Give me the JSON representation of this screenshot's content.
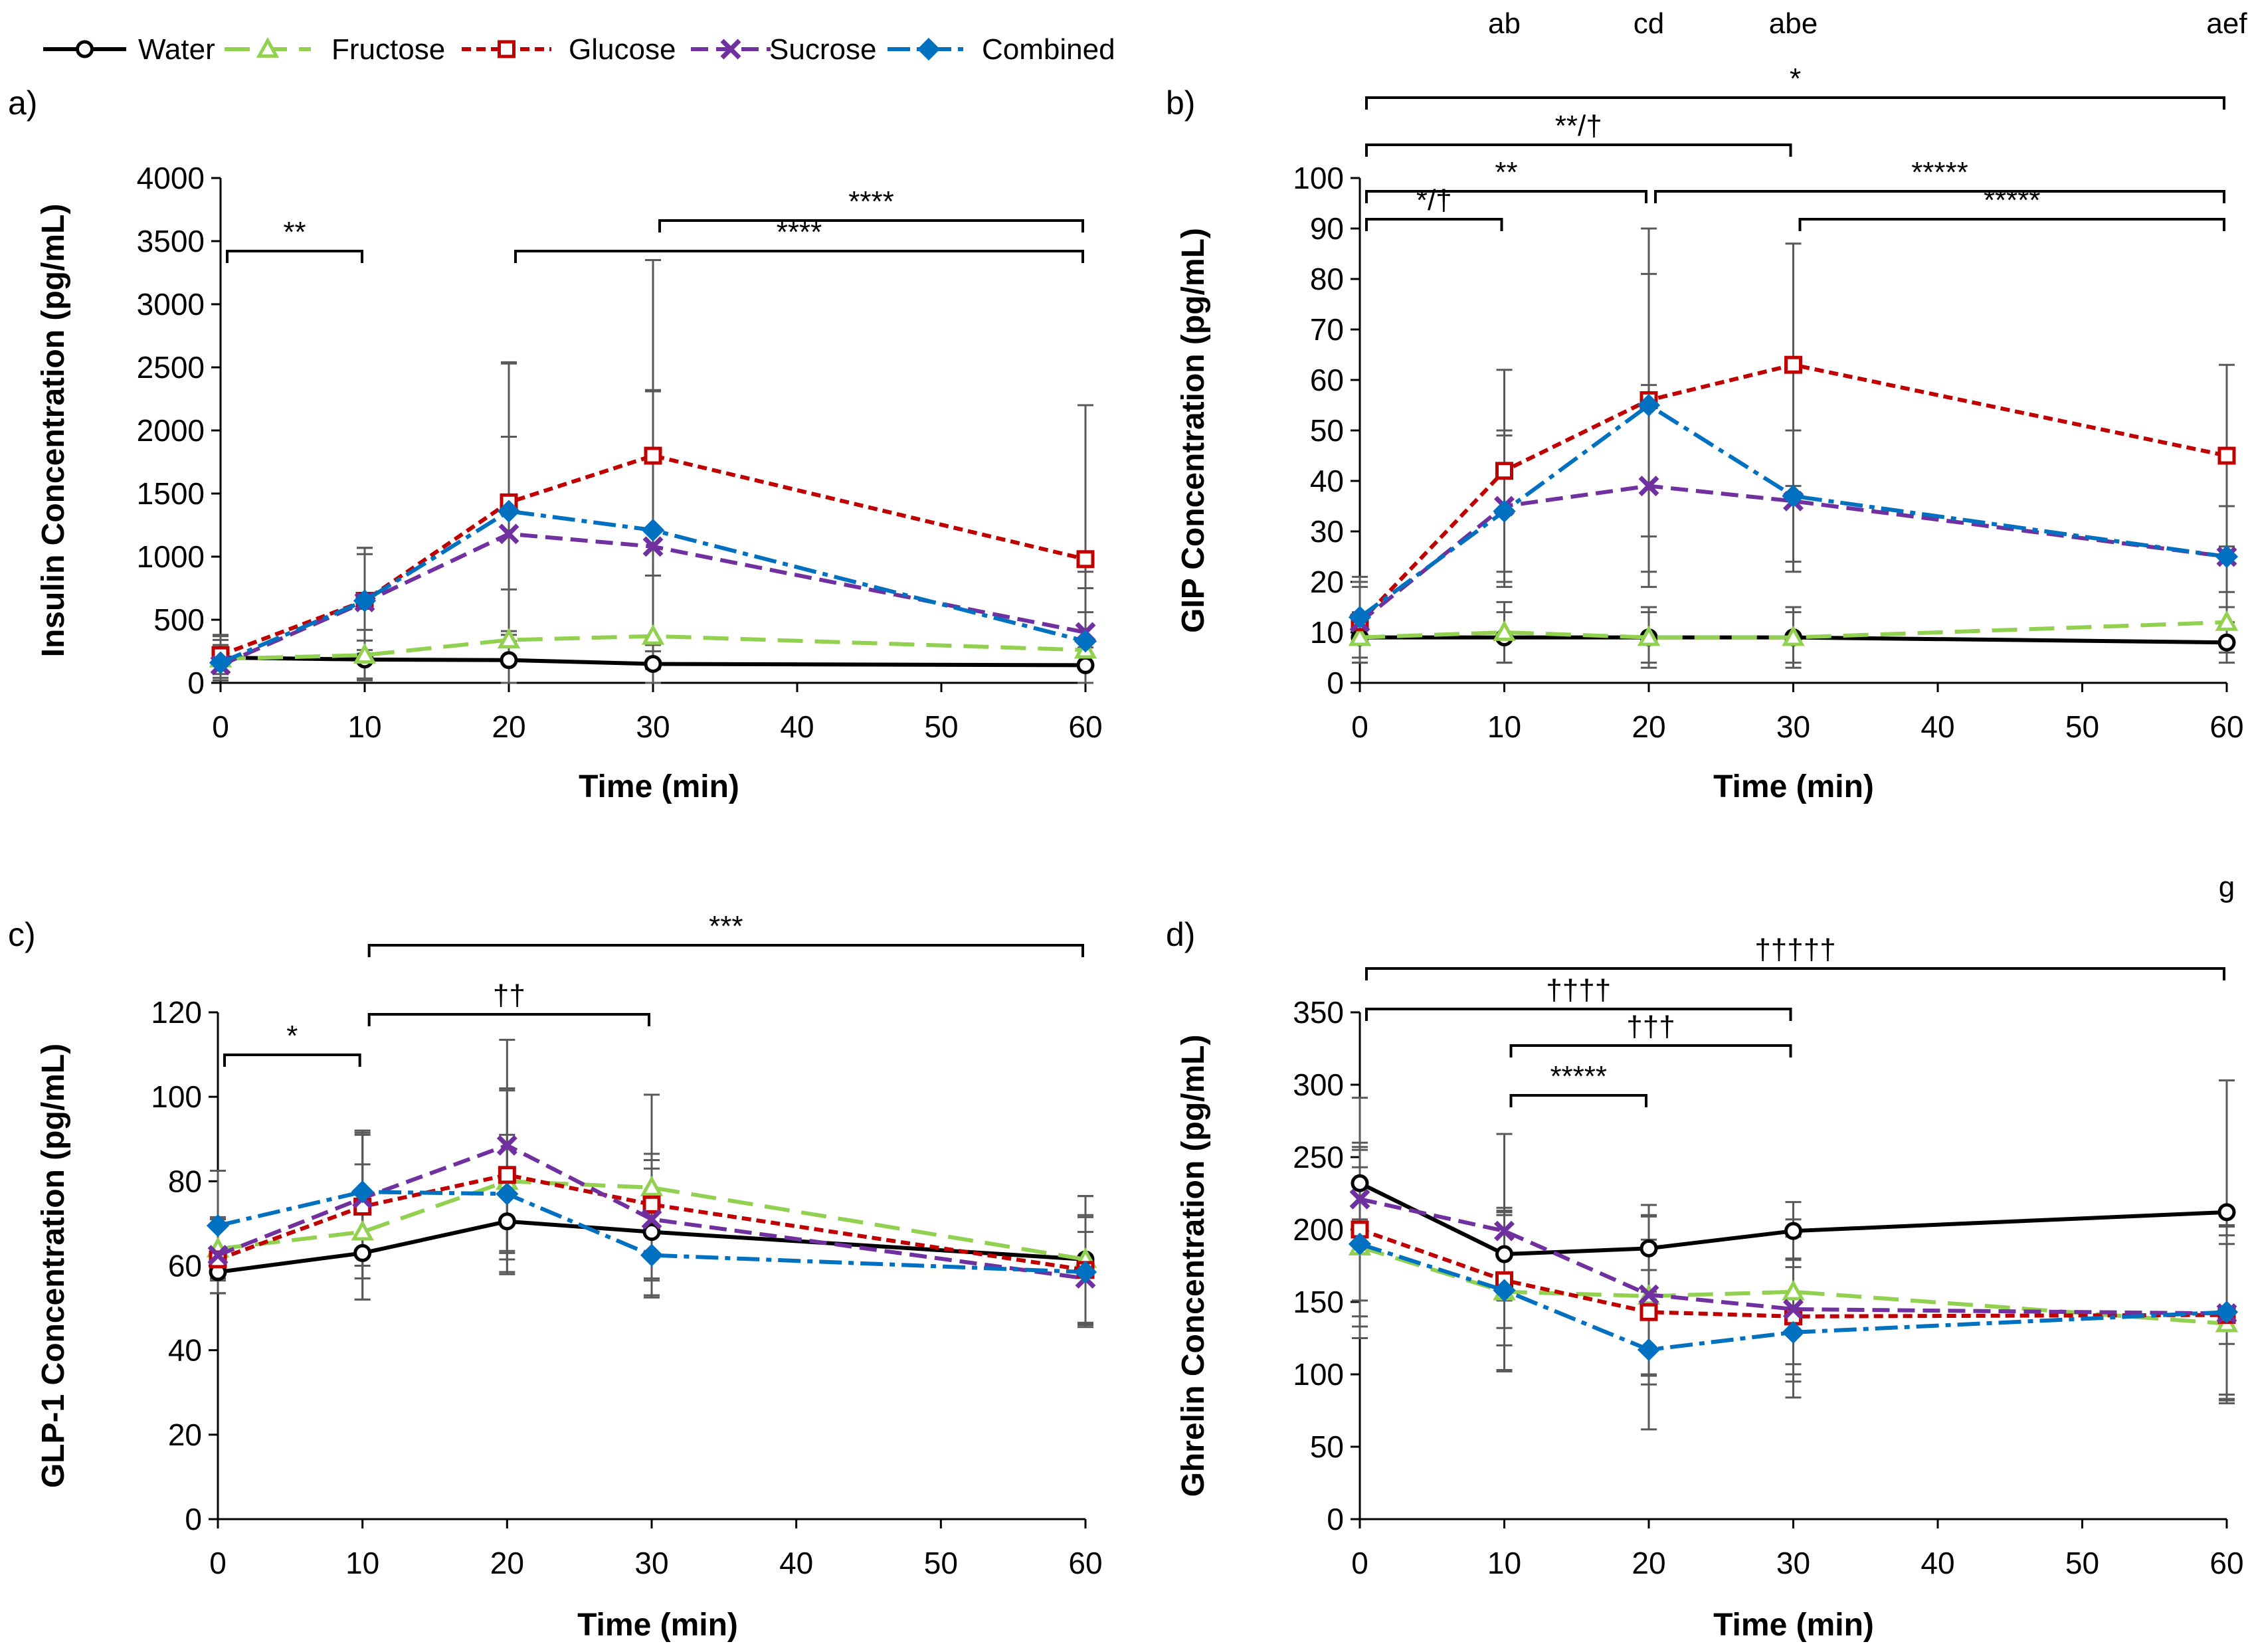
{
  "legend": {
    "items": [
      {
        "name": "Water",
        "color": "#000000",
        "dash": "",
        "marker": "circle"
      },
      {
        "name": "Fructose",
        "color": "#92d050",
        "dash": "38,18",
        "marker": "triangle"
      },
      {
        "name": "Glucose",
        "color": "#c00000",
        "dash": "14,8",
        "marker": "square"
      },
      {
        "name": "Sucrose",
        "color": "#7030a0",
        "dash": "26,12",
        "marker": "cross"
      },
      {
        "name": "Combined",
        "color": "#0070c0",
        "dash": "34,10,8,10",
        "marker": "diamond"
      }
    ]
  },
  "chart_data": [
    {
      "panel": "a)",
      "type": "line",
      "ylabel": "Insulin Concentration (pg/mL)",
      "xlabel": "Time (min)",
      "x": [
        0,
        10,
        20,
        30,
        60
      ],
      "xlim": [
        0,
        60
      ],
      "xticks": [
        0,
        10,
        20,
        30,
        40,
        50,
        60
      ],
      "ylim": [
        0,
        4000
      ],
      "yticks": [
        0,
        500,
        1000,
        1500,
        2000,
        2500,
        3000,
        3500,
        4000
      ],
      "series": [
        {
          "name": "Water",
          "values": [
            200,
            185,
            180,
            150,
            140
          ],
          "err": [
            180,
            150,
            200,
            150,
            140
          ]
        },
        {
          "name": "Fructose",
          "values": [
            190,
            220,
            340,
            370,
            260
          ],
          "err": [
            150,
            200,
            400,
            480,
            300
          ]
        },
        {
          "name": "Glucose",
          "values": [
            220,
            650,
            1430,
            1800,
            980
          ],
          "err": [
            150,
            420,
            1100,
            1550,
            1220
          ]
        },
        {
          "name": "Sucrose",
          "values": [
            140,
            640,
            1180,
            1080,
            400
          ],
          "err": [
            120,
            380,
            770,
            1240,
            480
          ]
        },
        {
          "name": "Combined",
          "values": [
            160,
            650,
            1360,
            1210,
            330
          ],
          "err": [
            140,
            420,
            1180,
            1100,
            420
          ]
        }
      ],
      "brackets": [
        {
          "x1": 0,
          "x2": 10,
          "level": 1,
          "label": "**"
        },
        {
          "x1": 20,
          "x2": 60,
          "level": 1,
          "label": "****"
        },
        {
          "x1": 30,
          "x2": 60,
          "level": 2,
          "label": "****"
        }
      ],
      "letters": []
    },
    {
      "panel": "b)",
      "type": "line",
      "ylabel": "GIP Concentration (pg/mL)",
      "xlabel": "Time (min)",
      "x": [
        0,
        10,
        20,
        30,
        60
      ],
      "xlim": [
        0,
        60
      ],
      "xticks": [
        0,
        10,
        20,
        30,
        40,
        50,
        60
      ],
      "ylim": [
        0,
        100
      ],
      "yticks": [
        0,
        10,
        20,
        30,
        40,
        50,
        60,
        70,
        80,
        90,
        100
      ],
      "series": [
        {
          "name": "Water",
          "values": [
            9,
            9,
            9,
            9,
            8
          ],
          "err": [
            4,
            5,
            5,
            5,
            4
          ]
        },
        {
          "name": "Fructose",
          "values": [
            9,
            10,
            9,
            9,
            12
          ],
          "err": [
            5,
            6,
            6,
            6,
            6
          ]
        },
        {
          "name": "Glucose",
          "values": [
            12,
            42,
            56,
            63,
            45
          ],
          "err": [
            8,
            20,
            34,
            24,
            18
          ]
        },
        {
          "name": "Sucrose",
          "values": [
            12,
            35,
            39,
            36,
            25
          ],
          "err": [
            7,
            15,
            20,
            14,
            10
          ]
        },
        {
          "name": "Combined",
          "values": [
            13,
            34,
            55,
            37,
            25
          ],
          "err": [
            8,
            15,
            26,
            13,
            10
          ]
        }
      ],
      "brackets": [
        {
          "x1": 0,
          "x2": 10,
          "level": 1,
          "label": "*/†"
        },
        {
          "x1": 30,
          "x2": 60,
          "level": 1,
          "label": "*****"
        },
        {
          "x1": 0,
          "x2": 20,
          "level": 2,
          "label": "**"
        },
        {
          "x1": 20,
          "x2": 60,
          "level": 2,
          "label": "*****"
        },
        {
          "x1": 0,
          "x2": 30,
          "level": 3,
          "label": "**/†"
        },
        {
          "x1": 0,
          "x2": 60,
          "level": 4,
          "label": "*"
        }
      ],
      "letters": [
        {
          "x": 10,
          "text": "ab"
        },
        {
          "x": 20,
          "text": "cd"
        },
        {
          "x": 30,
          "text": "abe"
        },
        {
          "x": 60,
          "text": "aef"
        }
      ]
    },
    {
      "panel": "c)",
      "type": "line",
      "ylabel": "GLP-1 Concentration (pg/mL)",
      "xlabel": "Time (min)",
      "x": [
        0,
        10,
        20,
        30,
        60
      ],
      "xlim": [
        0,
        60
      ],
      "xticks": [
        0,
        10,
        20,
        30,
        40,
        50,
        60
      ],
      "ylim": [
        0,
        120
      ],
      "yticks": [
        0,
        20,
        40,
        60,
        80,
        100,
        120
      ],
      "series": [
        {
          "name": "Water",
          "values": [
            58.5,
            63,
            70.5,
            68,
            61.5
          ],
          "err": [
            5,
            11,
            12,
            15,
            15
          ]
        },
        {
          "name": "Fructose",
          "values": [
            64,
            68,
            80,
            78.5,
            61.5
          ],
          "err": [
            7,
            16,
            22,
            22,
            15
          ]
        },
        {
          "name": "Glucose",
          "values": [
            61.5,
            74,
            81.5,
            74.5,
            59
          ],
          "err": [
            8,
            17,
            20,
            12,
            13
          ]
        },
        {
          "name": "Sucrose",
          "values": [
            62.5,
            76,
            88.5,
            71,
            57
          ],
          "err": [
            9,
            16,
            25,
            14,
            11
          ]
        },
        {
          "name": "Combined",
          "values": [
            69.5,
            77.5,
            77,
            62.5,
            58.5
          ],
          "err": [
            13,
            14,
            14,
            10,
            13
          ]
        }
      ],
      "brackets": [
        {
          "x1": 0,
          "x2": 10,
          "level": 1,
          "label": "*"
        },
        {
          "x1": 10,
          "x2": 30,
          "level": 2,
          "label": "††"
        },
        {
          "x1": 10,
          "x2": 60,
          "level": 3,
          "label": "***"
        }
      ],
      "letters": []
    },
    {
      "panel": "d)",
      "type": "line",
      "ylabel": "Ghrelin Concentration (pg/mL)",
      "xlabel": "Time (min)",
      "x": [
        0,
        10,
        20,
        30,
        60
      ],
      "xlim": [
        0,
        60
      ],
      "xticks": [
        0,
        10,
        20,
        30,
        40,
        50,
        60
      ],
      "ylim": [
        0,
        350
      ],
      "yticks": [
        0,
        50,
        100,
        150,
        200,
        250,
        300,
        350
      ],
      "series": [
        {
          "name": "Water",
          "values": [
            232,
            183,
            187,
            199,
            212
          ],
          "err": [
            25,
            32,
            30,
            20,
            91
          ]
        },
        {
          "name": "Fructose",
          "values": [
            188,
            157,
            154,
            157,
            135
          ],
          "err": [
            55,
            55,
            55,
            50,
            55
          ]
        },
        {
          "name": "Glucose",
          "values": [
            200,
            165,
            143,
            140,
            141
          ],
          "err": [
            60,
            45,
            50,
            40,
            55
          ]
        },
        {
          "name": "Sucrose",
          "values": [
            221,
            199,
            155,
            145,
            142
          ],
          "err": [
            70,
            67,
            55,
            50,
            60
          ]
        },
        {
          "name": "Combined",
          "values": [
            190,
            158,
            117,
            129,
            143
          ],
          "err": [
            65,
            55,
            55,
            45,
            60
          ]
        }
      ],
      "brackets": [
        {
          "x1": 10,
          "x2": 20,
          "level": 1,
          "label": "*****"
        },
        {
          "x1": 10,
          "x2": 30,
          "level": 2,
          "label": "†††"
        },
        {
          "x1": 0,
          "x2": 30,
          "level": 3,
          "label": "††††"
        },
        {
          "x1": 0,
          "x2": 60,
          "level": 4,
          "label": "†††††"
        }
      ],
      "letters": [
        {
          "x": 60,
          "text": "g"
        }
      ]
    }
  ]
}
